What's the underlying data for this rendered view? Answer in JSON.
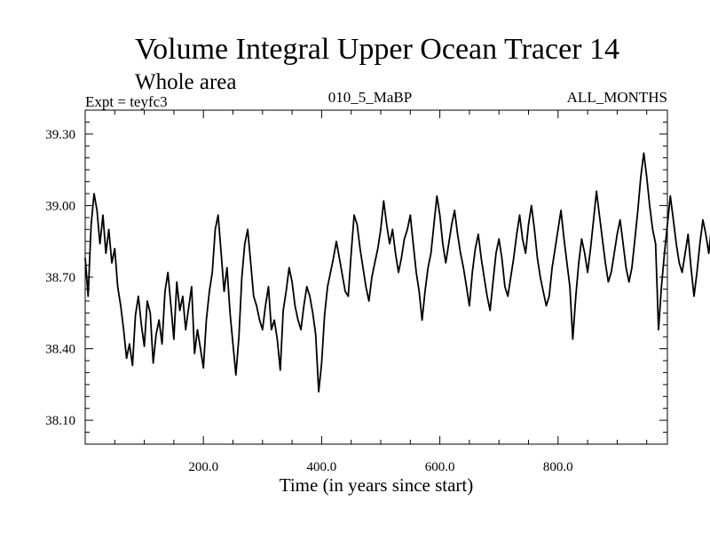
{
  "chart_data": {
    "type": "line",
    "title": "Volume Integral Upper Ocean Tracer 14",
    "subtitle": "Whole area",
    "label_left": "Expt = teyfc3",
    "label_center": "010_5_MaBP",
    "label_right": "ALL_MONTHS",
    "xlabel": "Time (in years since start)",
    "ylabel": "",
    "xlim": [
      0,
      985
    ],
    "ylim": [
      38.0,
      39.4
    ],
    "x_ticks": [
      200,
      400,
      600,
      800
    ],
    "x_tick_labels": [
      "200.0",
      "400.0",
      "600.0",
      "800.0"
    ],
    "y_ticks": [
      38.1,
      38.4,
      38.7,
      39.0,
      39.3
    ],
    "y_tick_labels": [
      "38.10",
      "38.40",
      "38.70",
      "39.00",
      "39.30"
    ],
    "grid": false,
    "series": [
      {
        "name": "Tracer 14 volume integral",
        "x_step": 5,
        "values": [
          38.78,
          38.62,
          38.92,
          39.05,
          38.98,
          38.84,
          38.96,
          38.8,
          38.9,
          38.76,
          38.82,
          38.66,
          38.58,
          38.48,
          38.36,
          38.42,
          38.33,
          38.54,
          38.62,
          38.5,
          38.41,
          38.6,
          38.55,
          38.34,
          38.46,
          38.52,
          38.42,
          38.64,
          38.72,
          38.58,
          38.44,
          38.68,
          38.56,
          38.62,
          38.48,
          38.57,
          38.66,
          38.38,
          38.48,
          38.4,
          38.32,
          38.52,
          38.64,
          38.72,
          38.9,
          38.96,
          38.8,
          38.64,
          38.74,
          38.55,
          38.42,
          38.29,
          38.45,
          38.7,
          38.84,
          38.9,
          38.76,
          38.62,
          38.58,
          38.52,
          38.48,
          38.58,
          38.66,
          38.48,
          38.52,
          38.44,
          38.31,
          38.56,
          38.64,
          38.74,
          38.68,
          38.58,
          38.52,
          38.48,
          38.58,
          38.66,
          38.62,
          38.55,
          38.46,
          38.22,
          38.34,
          38.54,
          38.66,
          38.72,
          38.78,
          38.85,
          38.78,
          38.71,
          38.64,
          38.62,
          38.8,
          38.96,
          38.92,
          38.82,
          38.74,
          38.66,
          38.6,
          38.7,
          38.76,
          38.82,
          38.9,
          39.02,
          38.92,
          38.84,
          38.9,
          38.8,
          38.72,
          38.78,
          38.86,
          38.9,
          38.96,
          38.84,
          38.72,
          38.64,
          38.52,
          38.64,
          38.74,
          38.8,
          38.92,
          39.04,
          38.96,
          38.84,
          38.76,
          38.84,
          38.92,
          38.98,
          38.88,
          38.8,
          38.74,
          38.66,
          38.58,
          38.72,
          38.82,
          38.88,
          38.78,
          38.7,
          38.62,
          38.56,
          38.68,
          38.8,
          38.86,
          38.78,
          38.66,
          38.62,
          38.7,
          38.78,
          38.88,
          38.96,
          38.86,
          38.8,
          38.92,
          39.0,
          38.9,
          38.78,
          38.7,
          38.64,
          38.58,
          38.62,
          38.74,
          38.82,
          38.9,
          38.98,
          38.86,
          38.76,
          38.66,
          38.44,
          38.62,
          38.76,
          38.86,
          38.8,
          38.72,
          38.82,
          38.94,
          39.06,
          38.96,
          38.86,
          38.76,
          38.68,
          38.72,
          38.8,
          38.88,
          38.94,
          38.84,
          38.74,
          38.68,
          38.74,
          38.86,
          38.98,
          39.12,
          39.22,
          39.12,
          39.0,
          38.9,
          38.84,
          38.48,
          38.66,
          38.8,
          38.92,
          39.04,
          38.94,
          38.84,
          38.76,
          38.72,
          38.8,
          38.88,
          38.74,
          38.62,
          38.72,
          38.84,
          38.94,
          38.88,
          38.8,
          38.92,
          39.0,
          38.92,
          38.82,
          38.72,
          38.66,
          38.78,
          38.88,
          38.96,
          38.9,
          38.82,
          38.76,
          38.84,
          38.92,
          39.0,
          38.92,
          38.84,
          38.78
        ]
      }
    ]
  }
}
